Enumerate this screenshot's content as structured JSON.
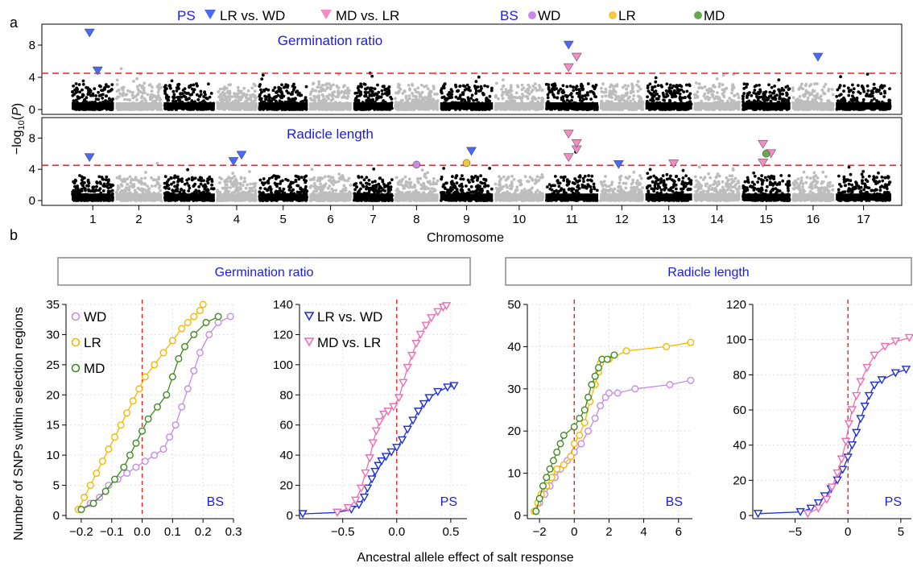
{
  "panel_labels": {
    "a": "a",
    "b": "b"
  },
  "legend": {
    "ps_label": "PS",
    "ps_items": [
      "LR vs. WD",
      "MD vs. LR"
    ],
    "bs_label": "BS",
    "bs_items": [
      "WD",
      "LR",
      "MD"
    ]
  },
  "colors": {
    "WD": "#c78be6",
    "LR": "#f5b800",
    "MD": "#3f8a1f",
    "LRvsWD": "#1f2fd6",
    "MDvsLR": "#f06cb0",
    "threshold": "#ee2222",
    "chrom_dark": "#000000",
    "chrom_light": "#bdbdbd",
    "label_blue": "#1a1aee"
  },
  "chart_data": [
    {
      "type": "scatter",
      "subtype": "manhattan",
      "title": "Germination ratio",
      "ylabel": "−log10(P)",
      "ylim": [
        0,
        10
      ],
      "yticks": [
        0,
        4,
        8
      ],
      "threshold": 4.5,
      "chromosomes": [
        "1",
        "2",
        "3",
        "4",
        "5",
        "6",
        "7",
        "8",
        "9",
        "10",
        "11",
        "12",
        "13",
        "14",
        "15",
        "16",
        "17"
      ],
      "xlabel": "Chromosome",
      "ps_markers": [
        {
          "series": "LR vs. WD",
          "chrom": "1",
          "y": 9.5
        },
        {
          "series": "LR vs. WD",
          "chrom": "1",
          "y": 4.8
        },
        {
          "series": "LR vs. WD",
          "chrom": "11",
          "y": 8.0
        },
        {
          "series": "MD vs. LR",
          "chrom": "11",
          "y": 6.5
        },
        {
          "series": "MD vs. LR",
          "chrom": "11",
          "y": 5.2
        },
        {
          "series": "LR vs. WD",
          "chrom": "16",
          "y": 6.5
        }
      ]
    },
    {
      "type": "scatter",
      "subtype": "manhattan",
      "title": "Radicle length",
      "ylabel": "−log10(P)",
      "ylim": [
        0,
        10
      ],
      "yticks": [
        0,
        4,
        8
      ],
      "threshold": 4.5,
      "ps_markers": [
        {
          "series": "LR vs. WD",
          "chrom": "1",
          "y": 5.5
        },
        {
          "series": "LR vs. WD",
          "chrom": "4",
          "y": 5.8
        },
        {
          "series": "LR vs. WD",
          "chrom": "4",
          "y": 5.0
        },
        {
          "series": "LR vs. WD",
          "chrom": "9",
          "y": 6.3
        },
        {
          "series": "MD vs. LR",
          "chrom": "11",
          "y": 8.5
        },
        {
          "series": "MD vs. LR",
          "chrom": "11",
          "y": 6.5
        },
        {
          "series": "MD vs. LR",
          "chrom": "11",
          "y": 5.5
        },
        {
          "series": "MD vs. LR",
          "chrom": "11",
          "y": 7.3
        },
        {
          "series": "LR vs. WD",
          "chrom": "12",
          "y": 4.6
        },
        {
          "series": "MD vs. LR",
          "chrom": "13",
          "y": 4.7
        },
        {
          "series": "MD vs. LR",
          "chrom": "15",
          "y": 7.2
        },
        {
          "series": "MD vs. LR",
          "chrom": "15",
          "y": 6.0
        },
        {
          "series": "MD vs. LR",
          "chrom": "15",
          "y": 4.8
        }
      ],
      "bs_markers": [
        {
          "series": "WD",
          "chrom": "8",
          "y": 4.6
        },
        {
          "series": "LR",
          "chrom": "9",
          "y": 4.8
        },
        {
          "series": "MD",
          "chrom": "15",
          "y": 6.0
        }
      ]
    },
    {
      "type": "scatter",
      "group": "Germination ratio",
      "corner_label": "BS",
      "ylabel": "Number of SNPs within selection regions",
      "xlim": [
        -0.25,
        0.3
      ],
      "xticks": [
        -0.2,
        -0.1,
        0.0,
        0.1,
        0.2,
        0.3
      ],
      "xtick_labels": [
        "−0.2",
        "−0.1",
        "0.0",
        "0.1",
        "0.2",
        "0.3"
      ],
      "ylim": [
        0,
        35
      ],
      "yticks": [
        0,
        5,
        10,
        15,
        20,
        25,
        30,
        35
      ],
      "series": [
        {
          "name": "WD",
          "x": [
            -0.2,
            -0.17,
            -0.14,
            -0.11,
            -0.08,
            -0.05,
            -0.02,
            0.01,
            0.04,
            0.07,
            0.09,
            0.11,
            0.13,
            0.15,
            0.17,
            0.19,
            0.22,
            0.25,
            0.29
          ],
          "y": [
            1,
            2,
            3,
            5,
            6,
            7,
            8,
            9,
            10,
            11,
            13,
            15,
            18,
            21,
            24,
            27,
            30,
            32,
            33
          ]
        },
        {
          "name": "LR",
          "x": [
            -0.21,
            -0.19,
            -0.17,
            -0.15,
            -0.13,
            -0.11,
            -0.09,
            -0.07,
            -0.05,
            -0.03,
            -0.01,
            0.01,
            0.04,
            0.07,
            0.1,
            0.13,
            0.15,
            0.17,
            0.19,
            0.2
          ],
          "y": [
            1,
            3,
            5,
            7,
            9,
            11,
            13,
            15,
            17,
            19,
            21,
            23,
            25,
            27,
            29,
            31,
            32,
            33,
            34,
            35
          ]
        },
        {
          "name": "MD",
          "x": [
            -0.2,
            -0.16,
            -0.12,
            -0.09,
            -0.06,
            -0.04,
            -0.02,
            0.0,
            0.02,
            0.05,
            0.08,
            0.1,
            0.12,
            0.14,
            0.17,
            0.21,
            0.25
          ],
          "y": [
            1,
            2,
            4,
            6,
            8,
            10,
            12,
            14,
            16,
            18,
            20,
            23,
            26,
            28,
            30,
            32,
            33
          ]
        }
      ]
    },
    {
      "type": "scatter",
      "group": "Germination ratio",
      "corner_label": "PS",
      "xlim": [
        -0.9,
        0.65
      ],
      "xticks": [
        -0.5,
        0.0,
        0.5
      ],
      "xtick_labels": [
        "−0.5",
        "0.0",
        "0.5"
      ],
      "ylim": [
        0,
        140
      ],
      "yticks": [
        0,
        20,
        40,
        60,
        80,
        100,
        120,
        140
      ],
      "series": [
        {
          "name": "LR vs. WD",
          "x": [
            -0.87,
            -0.55,
            -0.42,
            -0.35,
            -0.3,
            -0.27,
            -0.23,
            -0.2,
            -0.17,
            -0.14,
            -0.1,
            -0.05,
            0.0,
            0.05,
            0.1,
            0.15,
            0.2,
            0.25,
            0.3,
            0.38,
            0.47,
            0.53
          ],
          "y": [
            1,
            2,
            4,
            7,
            12,
            18,
            24,
            29,
            33,
            36,
            39,
            42,
            45,
            50,
            57,
            63,
            69,
            74,
            78,
            82,
            85,
            86
          ]
        },
        {
          "name": "MD vs. LR",
          "x": [
            -0.55,
            -0.45,
            -0.38,
            -0.33,
            -0.29,
            -0.25,
            -0.22,
            -0.19,
            -0.16,
            -0.12,
            -0.08,
            -0.03,
            0.02,
            0.06,
            0.1,
            0.14,
            0.18,
            0.22,
            0.27,
            0.32,
            0.38,
            0.43,
            0.46
          ],
          "y": [
            2,
            5,
            10,
            18,
            28,
            38,
            48,
            56,
            62,
            67,
            69,
            72,
            78,
            88,
            98,
            106,
            114,
            120,
            126,
            131,
            135,
            138,
            139
          ]
        }
      ]
    },
    {
      "type": "scatter",
      "group": "Radicle length",
      "corner_label": "BS",
      "xlim": [
        -2.7,
        6.8
      ],
      "xticks": [
        -2,
        0,
        2,
        4,
        6
      ],
      "xtick_labels": [
        "−2",
        "0",
        "2",
        "4",
        "6"
      ],
      "ylim": [
        0,
        50
      ],
      "yticks": [
        0,
        10,
        20,
        30,
        40,
        50
      ],
      "series": [
        {
          "name": "WD",
          "x": [
            -2.2,
            -2.0,
            -1.7,
            -1.4,
            -1.1,
            -0.8,
            -0.4,
            0.0,
            0.4,
            0.8,
            1.2,
            1.5,
            1.8,
            2.0,
            2.5,
            3.5,
            5.5,
            6.7
          ],
          "y": [
            1,
            3,
            5,
            7,
            9,
            11,
            13,
            15,
            17,
            20,
            23,
            26,
            28,
            29,
            29,
            30,
            31,
            32
          ]
        },
        {
          "name": "LR",
          "x": [
            -2.3,
            -2.1,
            -1.9,
            -1.6,
            -1.3,
            -1.0,
            -0.6,
            -0.2,
            0.0,
            0.3,
            0.6,
            0.9,
            1.2,
            1.4,
            1.5,
            1.6,
            2.0,
            3.0,
            5.3,
            6.7
          ],
          "y": [
            1,
            3,
            5,
            7,
            9,
            11,
            12,
            14,
            17,
            19,
            22,
            27,
            31,
            34,
            36,
            37,
            37,
            39,
            40,
            41
          ]
        },
        {
          "name": "MD",
          "x": [
            -2.2,
            -2.0,
            -1.8,
            -1.6,
            -1.4,
            -1.2,
            -1.0,
            -0.8,
            -0.6,
            0.0,
            0.3,
            0.6,
            0.8,
            1.0,
            1.2,
            1.4,
            1.6,
            1.9,
            2.3
          ],
          "y": [
            1,
            4,
            7,
            9,
            11,
            13,
            15,
            17,
            19,
            21,
            23,
            25,
            28,
            31,
            33,
            35,
            37,
            37,
            38
          ]
        }
      ]
    },
    {
      "type": "scatter",
      "group": "Radicle length",
      "corner_label": "PS",
      "xlim": [
        -9,
        6
      ],
      "xticks": [
        -5,
        0,
        5
      ],
      "xtick_labels": [
        "−5",
        "0",
        "5"
      ],
      "ylim": [
        0,
        120
      ],
      "yticks": [
        0,
        20,
        40,
        60,
        80,
        100,
        120
      ],
      "series": [
        {
          "name": "LR vs. WD",
          "x": [
            -8.5,
            -4.5,
            -3.5,
            -2.8,
            -2.2,
            -1.6,
            -1.0,
            -0.5,
            0.0,
            0.4,
            0.8,
            1.2,
            1.6,
            2.0,
            2.5,
            3.2,
            4.5,
            5.5
          ],
          "y": [
            1,
            2,
            4,
            7,
            11,
            15,
            20,
            26,
            33,
            40,
            47,
            55,
            62,
            68,
            74,
            77,
            81,
            83
          ]
        },
        {
          "name": "MD vs. LR",
          "x": [
            -3.8,
            -2.8,
            -2.0,
            -1.5,
            -1.0,
            -0.6,
            -0.2,
            0.1,
            0.4,
            0.8,
            1.2,
            1.8,
            2.5,
            3.5,
            4.5,
            5.8
          ],
          "y": [
            1,
            4,
            9,
            16,
            24,
            32,
            42,
            52,
            60,
            68,
            76,
            84,
            91,
            96,
            99,
            101
          ]
        }
      ]
    }
  ],
  "axis_titles": {
    "a_y": "−log10(P)",
    "a_x": "Chromosome",
    "b_y": "Number of SNPs within selection regions",
    "b_x": "Ancestral allele effect of salt response"
  },
  "group_boxes": [
    "Germination ratio",
    "Radicle length"
  ]
}
